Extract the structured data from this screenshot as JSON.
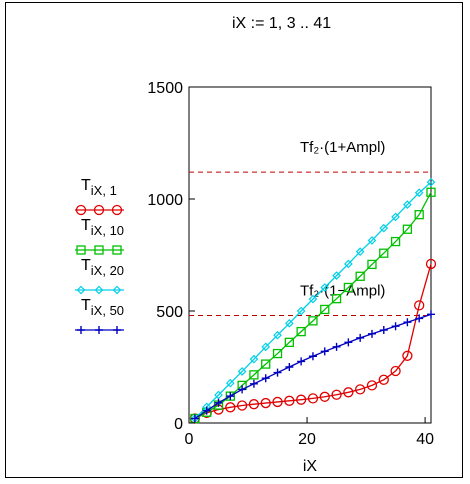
{
  "range_definition": "iX := 1, 3 .. 41",
  "chart_data": {
    "type": "line",
    "xlabel": "iX",
    "ylabel": "",
    "xlim": [
      0,
      41
    ],
    "ylim": [
      0,
      1500
    ],
    "x_ticks": [
      "0",
      "20",
      "40"
    ],
    "y_ticks": [
      "0",
      "500",
      "1000",
      "1500"
    ],
    "grid": false,
    "legend_position": "left",
    "x": [
      1,
      3,
      5,
      7,
      9,
      11,
      13,
      15,
      17,
      19,
      21,
      23,
      25,
      27,
      29,
      31,
      33,
      35,
      37,
      39,
      41
    ],
    "series": [
      {
        "name_main": "T",
        "name_sub": "iX, 1",
        "color": "#e00000",
        "marker": "circle",
        "values": [
          20,
          45,
          60,
          70,
          78,
          84,
          89,
          94,
          99,
          104,
          110,
          117,
          126,
          137,
          150,
          168,
          193,
          232,
          300,
          525,
          710
        ]
      },
      {
        "name_main": "T",
        "name_sub": "iX, 10",
        "color": "#00c000",
        "marker": "square",
        "values": [
          20,
          48,
          80,
          120,
          168,
          215,
          263,
          310,
          360,
          408,
          456,
          507,
          555,
          605,
          655,
          708,
          758,
          810,
          865,
          930,
          1030
        ]
      },
      {
        "name_main": "T",
        "name_sub": "iX, 20",
        "color": "#00d0e8",
        "marker": "diamond",
        "values": [
          20,
          72,
          125,
          178,
          230,
          285,
          340,
          392,
          445,
          500,
          553,
          605,
          658,
          710,
          765,
          815,
          870,
          920,
          975,
          1028,
          1075
        ]
      },
      {
        "name_main": "T",
        "name_sub": "iX, 50",
        "color": "#0000c0",
        "marker": "plus",
        "values": [
          20,
          55,
          90,
          120,
          150,
          175,
          200,
          225,
          250,
          275,
          298,
          320,
          340,
          360,
          380,
          398,
          415,
          432,
          450,
          467,
          485
        ]
      }
    ],
    "reference_lines": [
      {
        "y": 1120,
        "label": "Tf₂·(1+Ampl)",
        "color": "#c00000"
      },
      {
        "y": 480,
        "label": "Tf₂·(1−Ampl)",
        "color": "#c00000"
      }
    ]
  }
}
